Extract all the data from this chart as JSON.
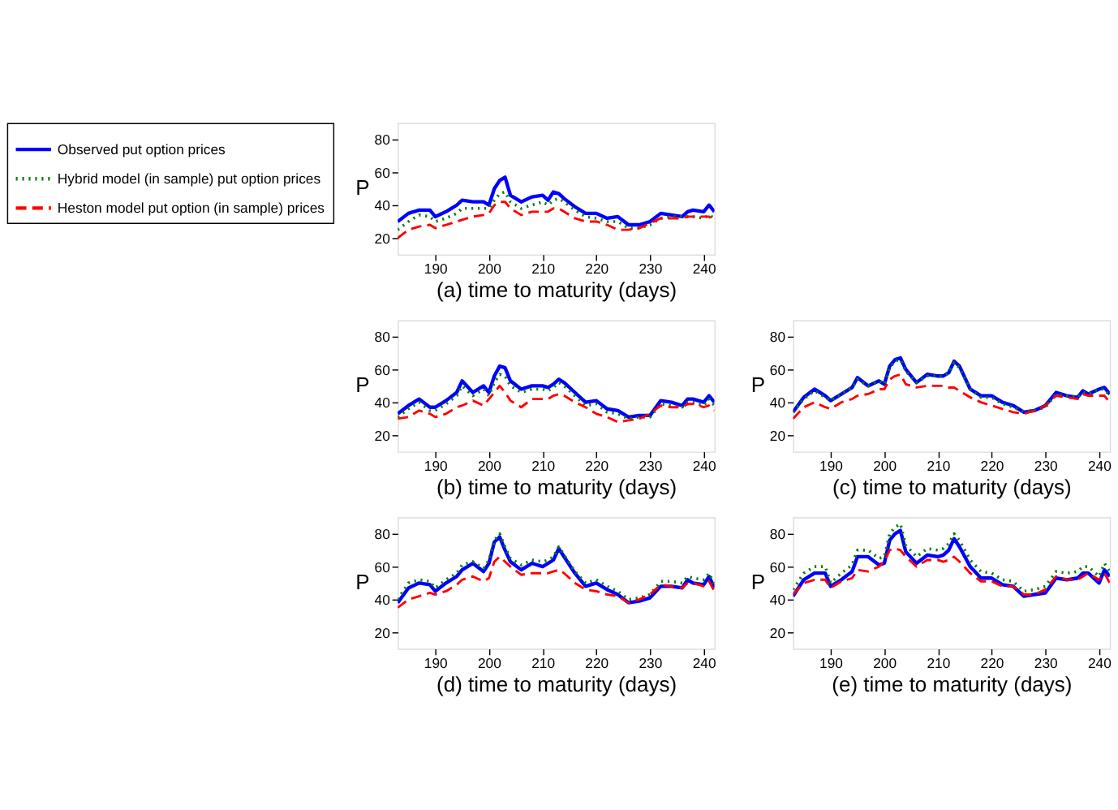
{
  "chart_data": [
    {
      "type": "line",
      "xlabel": "(a)    time to maturity (days)",
      "ylabel": "P",
      "xlim": [
        183,
        242
      ],
      "ylim": [
        10,
        90
      ],
      "xticks": [
        190,
        200,
        210,
        220,
        230,
        240
      ],
      "yticks": [
        20,
        40,
        60,
        80
      ],
      "grid": false,
      "legend": "left",
      "x": [
        183,
        185,
        187,
        189,
        190,
        192,
        194,
        195,
        197,
        199,
        200,
        201,
        202,
        203,
        204,
        206,
        208,
        210,
        211,
        212,
        213,
        214,
        216,
        218,
        220,
        222,
        224,
        226,
        228,
        230,
        232,
        234,
        236,
        237,
        238,
        240,
        241,
        242
      ],
      "series": [
        {
          "name": "Observed put option prices",
          "color": "#0000ff",
          "line_style": "solid",
          "values": [
            30,
            35,
            37,
            37,
            33,
            36,
            40,
            43,
            42,
            42,
            40,
            50,
            55,
            57,
            46,
            42,
            45,
            46,
            43,
            48,
            47,
            44,
            39,
            35,
            35,
            32,
            33,
            28,
            28,
            30,
            35,
            34,
            33,
            36,
            37,
            36,
            40,
            36
          ]
        },
        {
          "name": "Hybrid model (in sample) put option prices",
          "color": "#008000",
          "line_style": "dotted",
          "values": [
            25,
            30,
            34,
            33,
            30,
            32,
            35,
            38,
            38,
            38,
            38,
            43,
            47,
            48,
            42,
            38,
            40,
            42,
            40,
            43,
            44,
            42,
            37,
            33,
            32,
            30,
            30,
            26,
            26,
            28,
            32,
            33,
            33,
            33,
            33,
            32,
            34,
            32
          ]
        },
        {
          "name": "Heston model put option (in sample) prices",
          "color": "#ff0000",
          "line_style": "dashed",
          "values": [
            20,
            25,
            27,
            28,
            26,
            28,
            30,
            31,
            33,
            34,
            35,
            40,
            42,
            42,
            38,
            34,
            36,
            36,
            36,
            38,
            38,
            36,
            32,
            30,
            30,
            28,
            25,
            25,
            26,
            29,
            32,
            32,
            32,
            33,
            33,
            33,
            33,
            30
          ]
        }
      ]
    },
    {
      "type": "line",
      "xlabel": "(b)    time to maturity (days)",
      "ylabel": "P",
      "xlim": [
        183,
        242
      ],
      "ylim": [
        10,
        90
      ],
      "xticks": [
        190,
        200,
        210,
        220,
        230,
        240
      ],
      "yticks": [
        20,
        40,
        60,
        80
      ],
      "grid": false,
      "x": [
        183,
        185,
        187,
        189,
        190,
        192,
        194,
        195,
        197,
        199,
        200,
        201,
        202,
        203,
        204,
        206,
        208,
        210,
        211,
        212,
        213,
        214,
        216,
        218,
        220,
        222,
        224,
        226,
        228,
        230,
        232,
        234,
        236,
        237,
        238,
        240,
        241,
        242
      ],
      "series": [
        {
          "color": "#0000ff",
          "line_style": "solid",
          "values": [
            33,
            38,
            42,
            37,
            37,
            41,
            46,
            53,
            46,
            50,
            46,
            56,
            62,
            61,
            53,
            48,
            50,
            50,
            49,
            51,
            54,
            52,
            46,
            40,
            41,
            36,
            35,
            31,
            32,
            32,
            41,
            40,
            38,
            42,
            42,
            40,
            44,
            40
          ]
        },
        {
          "color": "#008000",
          "line_style": "dotted",
          "values": [
            31,
            36,
            40,
            35,
            35,
            39,
            44,
            50,
            44,
            48,
            44,
            52,
            57,
            56,
            50,
            46,
            48,
            48,
            47,
            49,
            52,
            50,
            44,
            38,
            39,
            34,
            33,
            30,
            31,
            31,
            39,
            38,
            37,
            40,
            40,
            38,
            42,
            38
          ]
        },
        {
          "color": "#ff0000",
          "line_style": "dashed",
          "values": [
            30,
            31,
            35,
            33,
            31,
            33,
            37,
            38,
            41,
            38,
            42,
            46,
            50,
            46,
            41,
            37,
            42,
            42,
            42,
            44,
            45,
            44,
            40,
            37,
            33,
            31,
            28,
            29,
            30,
            33,
            38,
            37,
            37,
            39,
            39,
            37,
            38,
            35
          ]
        }
      ]
    },
    {
      "type": "line",
      "xlabel": "(c)    time to maturity (days)",
      "ylabel": "P",
      "xlim": [
        183,
        242
      ],
      "ylim": [
        10,
        90
      ],
      "xticks": [
        190,
        200,
        210,
        220,
        230,
        240
      ],
      "yticks": [
        20,
        40,
        60,
        80
      ],
      "grid": false,
      "x": [
        183,
        185,
        187,
        189,
        190,
        192,
        194,
        195,
        197,
        199,
        200,
        201,
        202,
        203,
        204,
        206,
        208,
        210,
        211,
        212,
        213,
        214,
        216,
        218,
        220,
        222,
        224,
        226,
        228,
        230,
        232,
        234,
        236,
        237,
        238,
        240,
        241,
        242
      ],
      "series": [
        {
          "color": "#0000ff",
          "line_style": "solid",
          "values": [
            34,
            43,
            48,
            44,
            41,
            45,
            49,
            55,
            50,
            53,
            51,
            62,
            66,
            67,
            60,
            52,
            57,
            56,
            56,
            58,
            65,
            62,
            48,
            44,
            44,
            40,
            38,
            34,
            35,
            38,
            46,
            44,
            43,
            47,
            45,
            48,
            49,
            45
          ]
        },
        {
          "color": "#008000",
          "line_style": "dotted",
          "values": [
            34,
            42,
            47,
            43,
            41,
            45,
            49,
            54,
            50,
            53,
            51,
            61,
            65,
            66,
            59,
            52,
            56,
            56,
            56,
            58,
            64,
            61,
            48,
            43,
            43,
            39,
            37,
            34,
            35,
            37,
            45,
            44,
            43,
            46,
            45,
            48,
            48,
            44
          ]
        },
        {
          "color": "#ff0000",
          "line_style": "dashed",
          "values": [
            30,
            37,
            40,
            37,
            36,
            40,
            42,
            44,
            45,
            48,
            48,
            54,
            56,
            57,
            51,
            49,
            50,
            50,
            50,
            49,
            49,
            47,
            43,
            40,
            38,
            36,
            34,
            33,
            35,
            38,
            44,
            43,
            42,
            45,
            44,
            44,
            44,
            40
          ]
        }
      ]
    },
    {
      "type": "line",
      "xlabel": "(d)    time to maturity (days)",
      "ylabel": "P",
      "xlim": [
        183,
        242
      ],
      "ylim": [
        10,
        90
      ],
      "xticks": [
        190,
        200,
        210,
        220,
        230,
        240
      ],
      "yticks": [
        20,
        40,
        60,
        80
      ],
      "grid": false,
      "x": [
        183,
        185,
        187,
        189,
        190,
        192,
        194,
        195,
        197,
        199,
        200,
        201,
        202,
        203,
        204,
        206,
        208,
        210,
        211,
        212,
        213,
        214,
        216,
        218,
        220,
        222,
        224,
        226,
        228,
        230,
        232,
        234,
        236,
        237,
        238,
        240,
        241,
        242
      ],
      "series": [
        {
          "color": "#0000ff",
          "line_style": "solid",
          "values": [
            38,
            47,
            50,
            49,
            45,
            50,
            54,
            58,
            62,
            57,
            62,
            75,
            78,
            70,
            63,
            58,
            62,
            60,
            62,
            64,
            71,
            66,
            56,
            48,
            50,
            46,
            43,
            38,
            39,
            41,
            48,
            48,
            47,
            52,
            50,
            49,
            54,
            47
          ]
        },
        {
          "color": "#008000",
          "line_style": "dotted",
          "values": [
            40,
            50,
            52,
            51,
            47,
            52,
            56,
            61,
            63,
            59,
            64,
            76,
            80,
            72,
            65,
            61,
            64,
            63,
            64,
            66,
            72,
            67,
            57,
            50,
            52,
            48,
            45,
            40,
            41,
            43,
            51,
            51,
            50,
            54,
            53,
            52,
            56,
            49
          ]
        },
        {
          "color": "#ff0000",
          "line_style": "dashed",
          "values": [
            35,
            40,
            42,
            44,
            43,
            45,
            49,
            52,
            54,
            51,
            53,
            63,
            66,
            63,
            60,
            55,
            56,
            56,
            56,
            57,
            58,
            56,
            50,
            46,
            45,
            43,
            42,
            38,
            40,
            43,
            49,
            48,
            47,
            50,
            50,
            48,
            51,
            45
          ]
        }
      ]
    },
    {
      "type": "line",
      "xlabel": "(e)    time to maturity (days)",
      "ylabel": "P",
      "xlim": [
        183,
        242
      ],
      "ylim": [
        10,
        90
      ],
      "xticks": [
        190,
        200,
        210,
        220,
        230,
        240
      ],
      "yticks": [
        20,
        40,
        60,
        80
      ],
      "grid": false,
      "x": [
        183,
        185,
        187,
        189,
        190,
        192,
        194,
        195,
        197,
        199,
        200,
        201,
        202,
        203,
        204,
        206,
        208,
        210,
        211,
        212,
        213,
        214,
        216,
        218,
        220,
        222,
        224,
        226,
        228,
        230,
        232,
        234,
        236,
        237,
        238,
        240,
        241,
        242
      ],
      "series": [
        {
          "color": "#0000ff",
          "line_style": "solid",
          "values": [
            42,
            52,
            56,
            56,
            48,
            52,
            57,
            66,
            66,
            61,
            62,
            76,
            80,
            82,
            69,
            62,
            67,
            66,
            67,
            70,
            77,
            72,
            60,
            53,
            53,
            49,
            48,
            42,
            43,
            44,
            53,
            52,
            53,
            56,
            56,
            50,
            58,
            54
          ]
        },
        {
          "color": "#008000",
          "line_style": "dotted",
          "values": [
            46,
            56,
            60,
            60,
            50,
            56,
            61,
            70,
            70,
            65,
            66,
            80,
            84,
            86,
            73,
            66,
            71,
            70,
            71,
            74,
            80,
            76,
            64,
            57,
            56,
            52,
            51,
            45,
            46,
            48,
            57,
            56,
            57,
            60,
            60,
            54,
            62,
            57
          ]
        },
        {
          "color": "#ff0000",
          "line_style": "dashed",
          "values": [
            43,
            50,
            52,
            52,
            47,
            51,
            53,
            58,
            57,
            60,
            63,
            70,
            71,
            70,
            66,
            60,
            64,
            64,
            63,
            64,
            66,
            63,
            56,
            51,
            51,
            48,
            48,
            43,
            43,
            46,
            54,
            52,
            52,
            54,
            56,
            52,
            56,
            50
          ]
        }
      ]
    }
  ]
}
